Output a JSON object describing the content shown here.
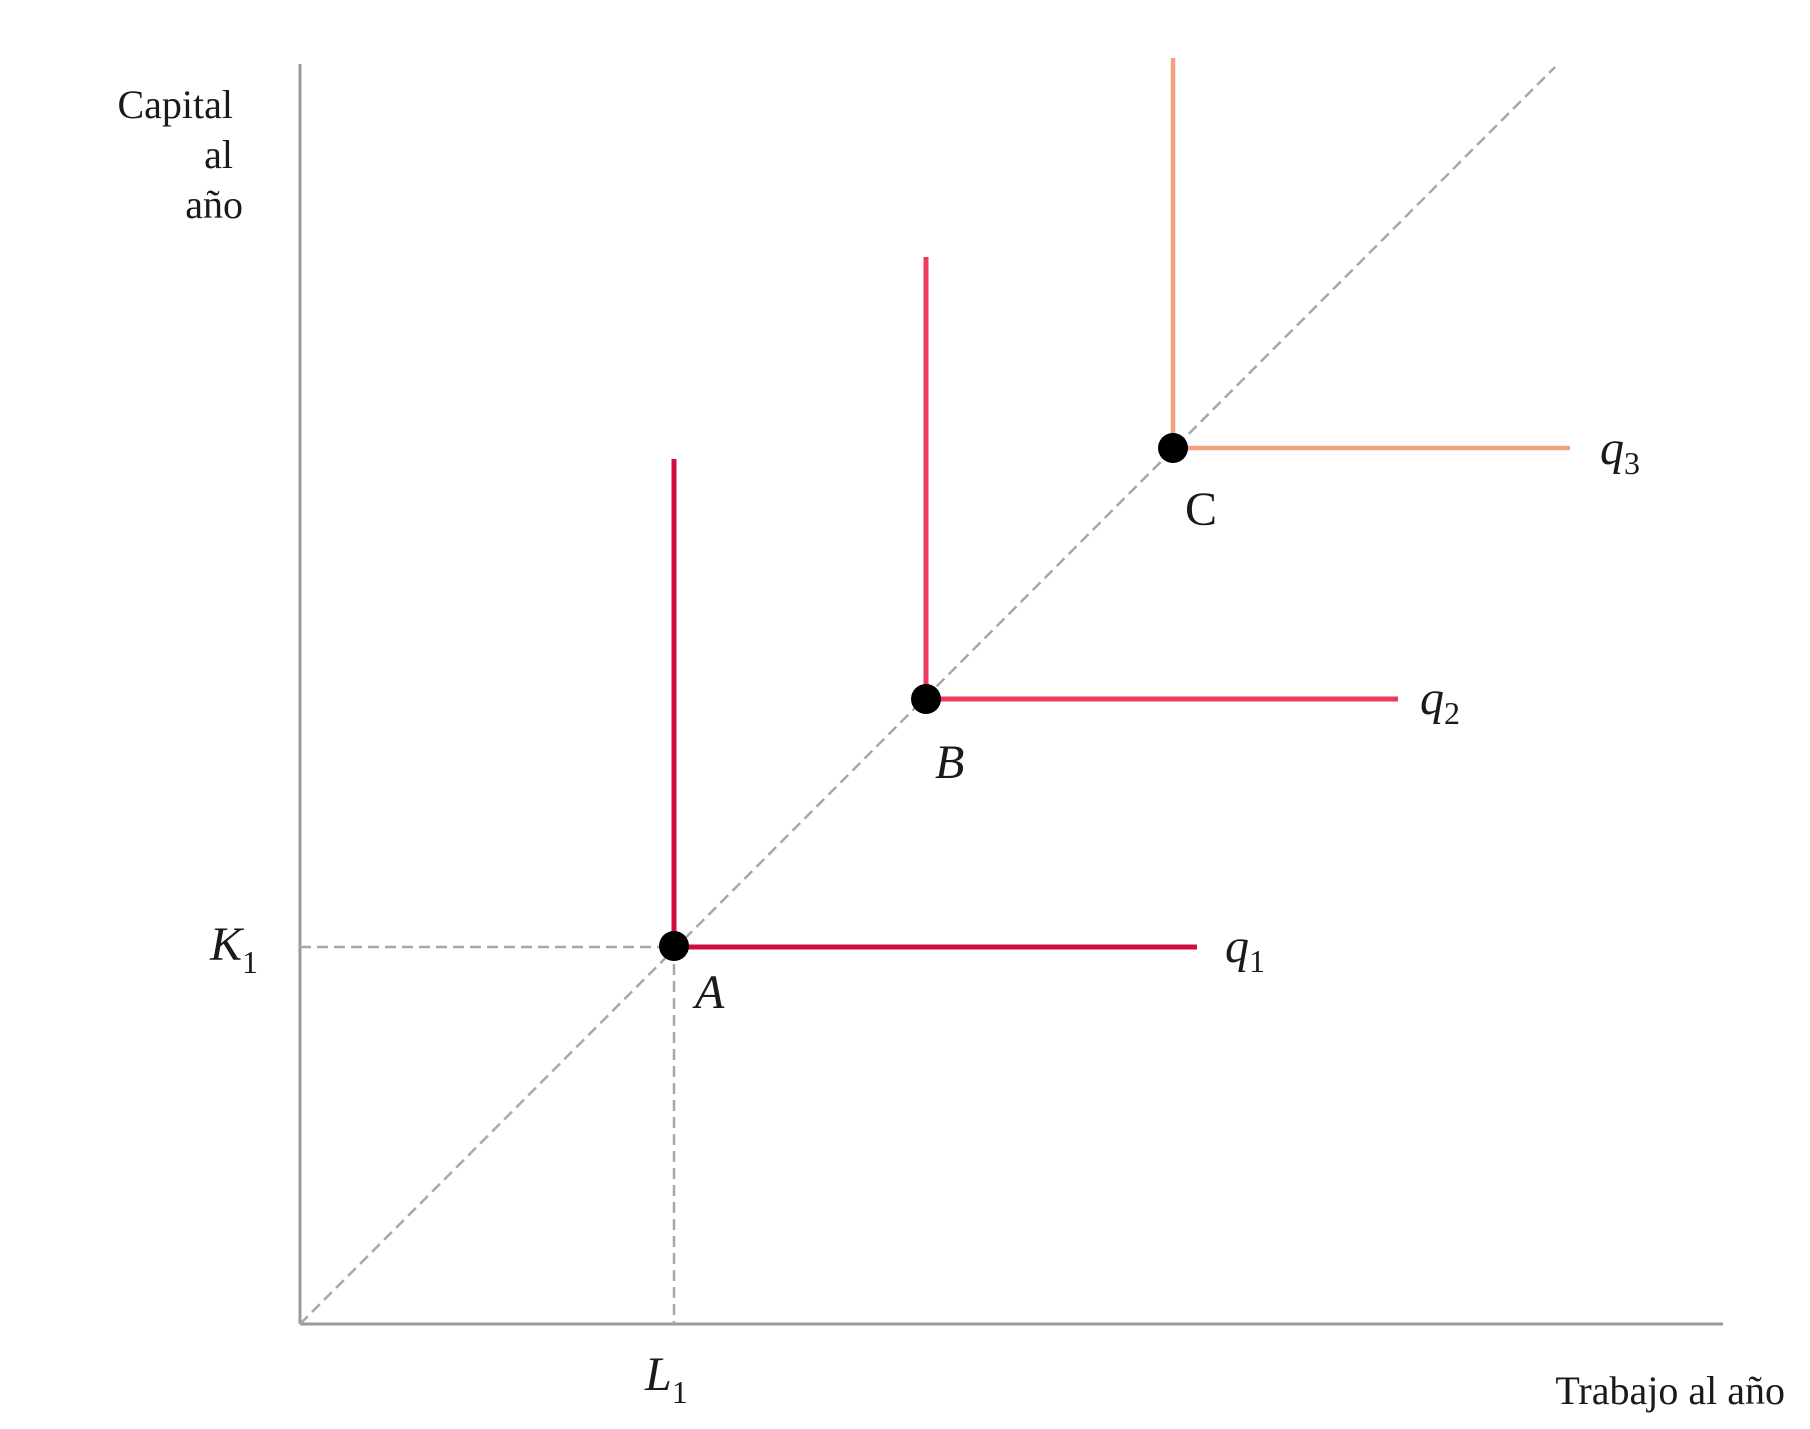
{
  "axes": {
    "y_label_lines": [
      "Capital",
      "al",
      "año"
    ],
    "x_label": "Trabajo al año",
    "k_tick": {
      "main": "K",
      "sub": "1"
    },
    "l_tick": {
      "main": "L",
      "sub": "1"
    }
  },
  "isoquants": [
    {
      "name": "q",
      "sub": "1",
      "point": "A",
      "color": "#cc0f3c"
    },
    {
      "name": "q",
      "sub": "2",
      "point": "B",
      "color": "#ee3a5e"
    },
    {
      "name": "q",
      "sub": "3",
      "point": "C",
      "color": "#f4a17e"
    }
  ],
  "colors": {
    "axis": "#9a9a9a",
    "guide": "#a8a8a8",
    "point": "#000000"
  }
}
